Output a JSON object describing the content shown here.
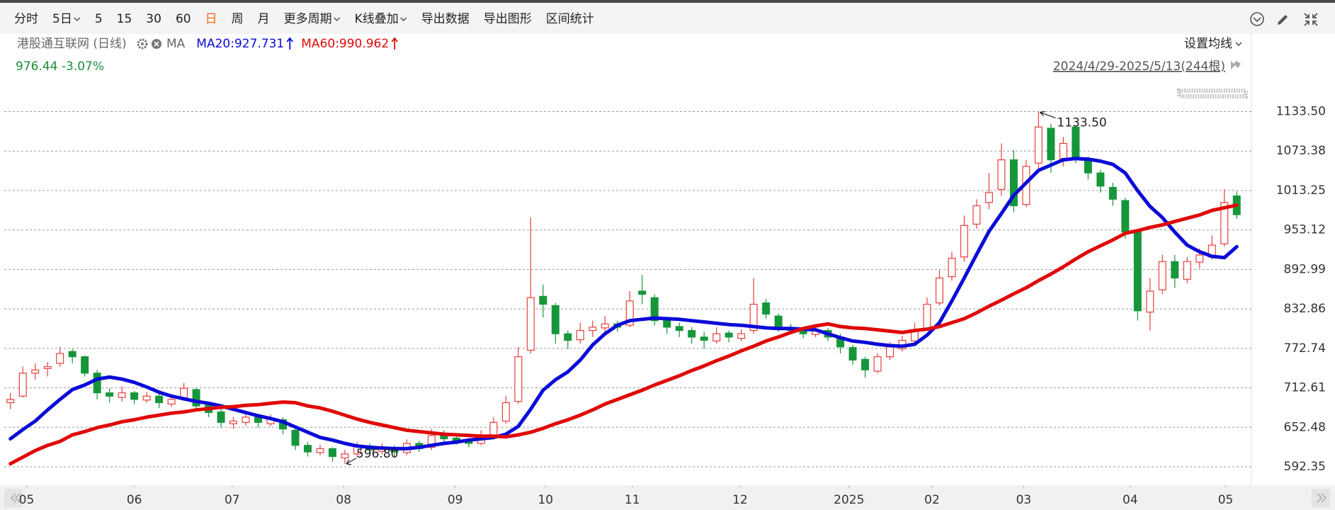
{
  "header": {
    "toolbar": [
      {
        "label": "分时"
      },
      {
        "label": "5日",
        "dropdown": true
      },
      {
        "label": "5"
      },
      {
        "label": "15"
      },
      {
        "label": "30"
      },
      {
        "label": "60"
      },
      {
        "label": "日",
        "active": true
      },
      {
        "label": "周"
      },
      {
        "label": "月"
      },
      {
        "label": "更多周期",
        "dropdown": true
      },
      {
        "label": "K线叠加",
        "dropdown": true
      },
      {
        "label": "导出数据"
      },
      {
        "label": "导出图形"
      },
      {
        "label": "区间统计"
      }
    ],
    "stock": "港股通互联网 (日线)",
    "ma": "MA",
    "quote": "976.44 -3.07%",
    "quote_color": "#1a8f3a",
    "set_ma": "设置均线",
    "range": "2024/4/29-2025/5/13(244根)"
  },
  "chart_data": {
    "type": "candlestick",
    "up_color": "#e8403c",
    "down_color": "#16963a",
    "up_hollow": true,
    "grid": true,
    "yaxis_side": "right",
    "xlim": [
      0,
      100
    ],
    "ylim": [
      564.3,
      1152.4
    ],
    "yticks": [
      592.35,
      652.48,
      712.61,
      772.74,
      832.86,
      892.99,
      953.12,
      1013.25,
      1073.38,
      {
        "value": 1133.5,
        "label": "1133.50"
      }
    ],
    "xticks": [
      {
        "value": 1.8,
        "label": "05"
      },
      {
        "value": 10.5,
        "label": "06"
      },
      {
        "value": 18.4,
        "label": "07"
      },
      {
        "value": 27.4,
        "label": "08"
      },
      {
        "value": 36.4,
        "label": "09"
      },
      {
        "value": 43.7,
        "label": "10"
      },
      {
        "value": 50.7,
        "label": "11"
      },
      {
        "value": 59.4,
        "label": "12"
      },
      {
        "value": 68.2,
        "label": "2025"
      },
      {
        "value": 74.9,
        "label": "02"
      },
      {
        "value": 82.3,
        "label": "03"
      },
      {
        "value": 90.9,
        "label": "04"
      },
      {
        "value": 98.6,
        "label": "05"
      }
    ],
    "candles": [
      [
        690,
        705,
        680,
        695
      ],
      [
        700,
        745,
        698,
        735
      ],
      [
        735,
        750,
        725,
        740
      ],
      [
        742,
        752,
        730,
        745
      ],
      [
        750,
        775,
        745,
        765
      ],
      [
        768,
        772,
        750,
        760
      ],
      [
        760,
        762,
        730,
        735
      ],
      [
        735,
        740,
        695,
        705
      ],
      [
        705,
        712,
        690,
        700
      ],
      [
        698,
        715,
        692,
        705
      ],
      [
        705,
        708,
        688,
        695
      ],
      [
        694,
        706,
        690,
        700
      ],
      [
        700,
        704,
        682,
        690
      ],
      [
        688,
        700,
        684,
        695
      ],
      [
        696,
        720,
        694,
        712
      ],
      [
        710,
        712,
        680,
        685
      ],
      [
        686,
        690,
        668,
        675
      ],
      [
        676,
        680,
        652,
        660
      ],
      [
        658,
        668,
        650,
        662
      ],
      [
        660,
        676,
        655,
        668
      ],
      [
        668,
        672,
        652,
        660
      ],
      [
        658,
        672,
        654,
        665
      ],
      [
        664,
        668,
        642,
        650
      ],
      [
        648,
        652,
        618,
        625
      ],
      [
        625,
        630,
        608,
        615
      ],
      [
        614,
        626,
        610,
        620
      ],
      [
        620,
        622,
        600,
        608
      ],
      [
        606,
        618,
        596.8,
        612
      ],
      [
        612,
        630,
        608,
        625
      ],
      [
        624,
        628,
        612,
        618
      ],
      [
        616,
        628,
        612,
        622
      ],
      [
        622,
        625,
        608,
        615
      ],
      [
        614,
        634,
        610,
        628
      ],
      [
        628,
        632,
        615,
        620
      ],
      [
        622,
        650,
        618,
        640
      ],
      [
        640,
        648,
        630,
        635
      ],
      [
        636,
        640,
        626,
        632
      ],
      [
        632,
        636,
        622,
        628
      ],
      [
        628,
        648,
        625,
        640
      ],
      [
        640,
        668,
        636,
        660
      ],
      [
        662,
        700,
        658,
        690
      ],
      [
        692,
        775,
        688,
        760
      ],
      [
        770,
        972,
        765,
        850
      ],
      [
        852,
        870,
        820,
        840
      ],
      [
        838,
        842,
        780,
        795
      ],
      [
        795,
        800,
        772,
        785
      ],
      [
        786,
        812,
        780,
        800
      ],
      [
        800,
        815,
        790,
        805
      ],
      [
        804,
        822,
        798,
        810
      ],
      [
        810,
        815,
        798,
        805
      ],
      [
        808,
        860,
        805,
        845
      ],
      [
        860,
        885,
        840,
        855
      ],
      [
        850,
        855,
        808,
        815
      ],
      [
        815,
        820,
        795,
        805
      ],
      [
        806,
        812,
        790,
        800
      ],
      [
        800,
        805,
        780,
        790
      ],
      [
        790,
        798,
        772,
        785
      ],
      [
        784,
        805,
        780,
        795
      ],
      [
        796,
        800,
        782,
        790
      ],
      [
        788,
        802,
        784,
        795
      ],
      [
        800,
        880,
        795,
        840
      ],
      [
        842,
        848,
        818,
        825
      ],
      [
        822,
        826,
        798,
        805
      ],
      [
        804,
        810,
        794,
        800
      ],
      [
        802,
        806,
        788,
        795
      ],
      [
        794,
        810,
        790,
        800
      ],
      [
        800,
        804,
        784,
        790
      ],
      [
        790,
        795,
        765,
        775
      ],
      [
        774,
        778,
        748,
        755
      ],
      [
        756,
        760,
        728,
        740
      ],
      [
        738,
        765,
        735,
        760
      ],
      [
        760,
        782,
        755,
        775
      ],
      [
        772,
        792,
        768,
        785
      ],
      [
        784,
        812,
        780,
        800
      ],
      [
        802,
        850,
        800,
        840
      ],
      [
        842,
        892,
        838,
        880
      ],
      [
        882,
        920,
        876,
        910
      ],
      [
        912,
        975,
        905,
        960
      ],
      [
        962,
        1000,
        955,
        990
      ],
      [
        995,
        1040,
        985,
        1010
      ],
      [
        1015,
        1085,
        1005,
        1060
      ],
      [
        1060,
        1075,
        980,
        990
      ],
      [
        992,
        1060,
        988,
        1050
      ],
      [
        1055,
        1133.5,
        1045,
        1110
      ],
      [
        1108,
        1115,
        1040,
        1060
      ],
      [
        1062,
        1095,
        1050,
        1085
      ],
      [
        1110,
        1112,
        1055,
        1060
      ],
      [
        1060,
        1065,
        1030,
        1040
      ],
      [
        1040,
        1045,
        1010,
        1020
      ],
      [
        1018,
        1025,
        990,
        1000
      ],
      [
        998,
        1002,
        940,
        950
      ],
      [
        950,
        955,
        815,
        830
      ],
      [
        828,
        880,
        800,
        860
      ],
      [
        862,
        915,
        855,
        905
      ],
      [
        905,
        915,
        865,
        880
      ],
      [
        878,
        912,
        872,
        905
      ],
      [
        904,
        925,
        895,
        915
      ],
      [
        912,
        945,
        908,
        930
      ],
      [
        932,
        1015,
        928,
        995
      ],
      [
        1005,
        1012,
        970,
        976.44
      ]
    ],
    "series": [
      {
        "name": "MA20:927.731",
        "color": "#0a0ad8",
        "values": [
          635,
          649,
          662,
          679,
          695,
          710,
          717,
          726,
          729,
          726,
          721,
          714,
          706,
          700,
          696,
          692,
          689,
          685,
          680,
          675,
          670,
          666,
          661,
          653,
          645,
          637,
          633,
          628,
          624,
          622,
          621,
          620,
          620,
          622,
          625,
          628,
          630,
          633,
          635,
          637,
          642,
          654,
          680,
          709,
          725,
          737,
          755,
          778,
          795,
          808,
          815,
          817,
          819,
          818,
          817,
          815,
          813,
          811,
          809,
          808,
          806,
          804,
          803,
          803,
          802,
          801,
          795,
          789,
          784,
          782,
          779,
          777,
          776,
          779,
          793,
          812,
          845,
          880,
          916,
          951,
          978,
          1006,
          1025,
          1044,
          1052,
          1060,
          1062,
          1061,
          1058,
          1053,
          1040,
          1013,
          989,
          972,
          950,
          930,
          920,
          913,
          911,
          927.731
        ]
      },
      {
        "name": "MA60:990.962",
        "color": "#e00808",
        "values": [
          597,
          607,
          617,
          625,
          631,
          641,
          646,
          652,
          656,
          661,
          664,
          668,
          671,
          674,
          676,
          679,
          681,
          683,
          684,
          686,
          687,
          689,
          691,
          690,
          685,
          682,
          677,
          671,
          665,
          660,
          656,
          652,
          648,
          646,
          644,
          642,
          641,
          640,
          639,
          639,
          638,
          641,
          645,
          651,
          658,
          664,
          671,
          679,
          688,
          695,
          702,
          709,
          717,
          724,
          731,
          739,
          746,
          754,
          761,
          769,
          776,
          784,
          790,
          797,
          803,
          807,
          810,
          806,
          804,
          803,
          801,
          799,
          797,
          800,
          802,
          806,
          812,
          818,
          827,
          837,
          846,
          856,
          865,
          876,
          886,
          897,
          909,
          920,
          929,
          938,
          948,
          952,
          957,
          961,
          966,
          971,
          976,
          983,
          987,
          990.962
        ]
      }
    ],
    "max_label": {
      "value": 1133.5,
      "label": "1133.50"
    },
    "min_label": {
      "value": 596.8,
      "label": "596.80"
    }
  }
}
